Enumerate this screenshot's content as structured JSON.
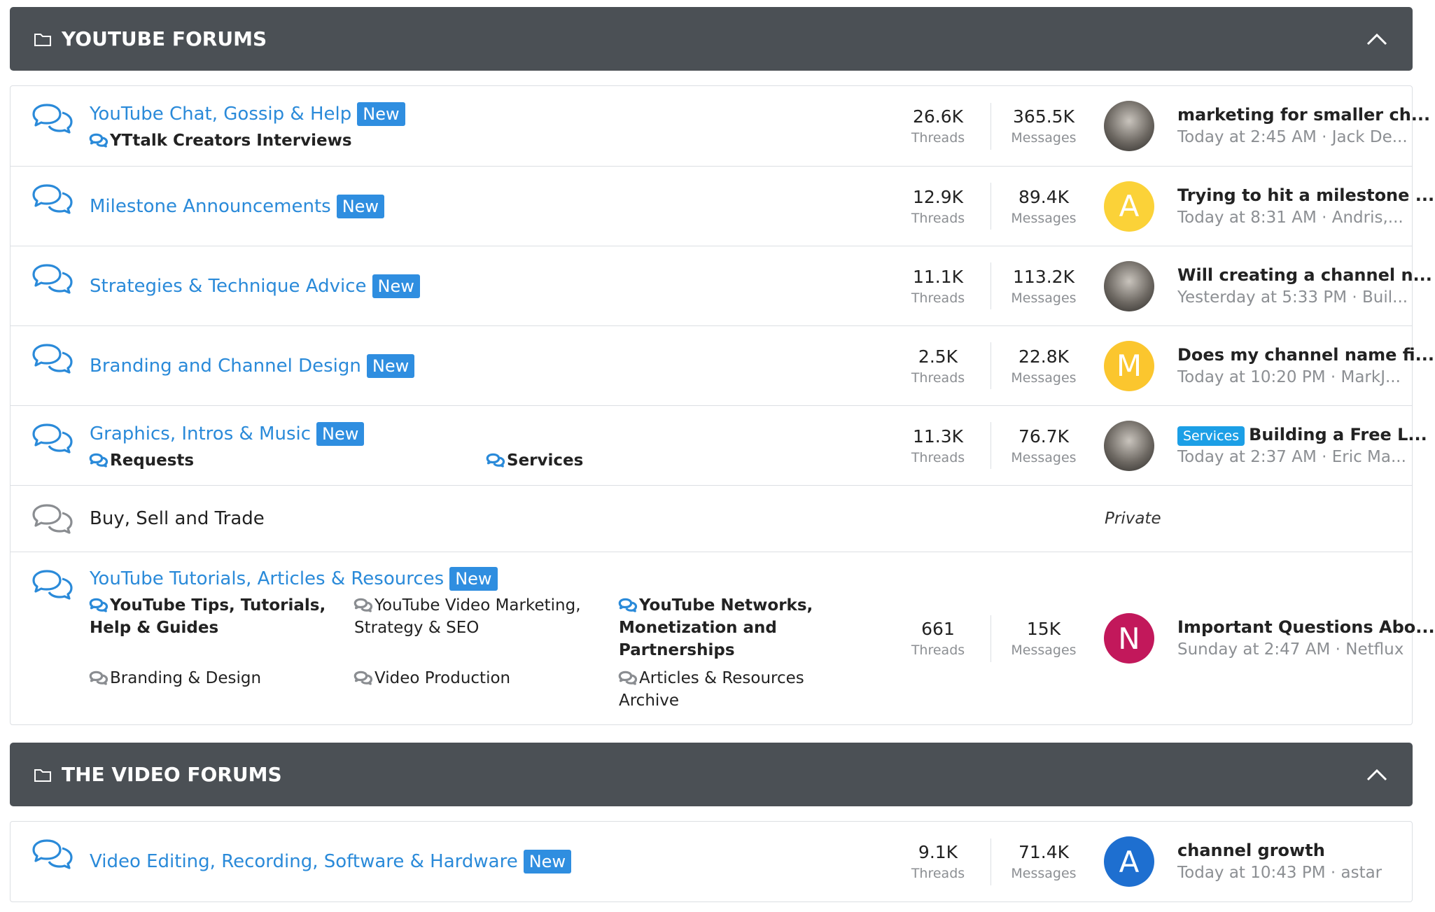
{
  "sections": [
    {
      "title": "YOUTUBE FORUMS",
      "forums": [
        {
          "title": "YouTube Chat, Gossip & Help",
          "badge": "New",
          "unread": true,
          "subforums": [
            {
              "name": "YTtalk Creators Interviews",
              "unread": true
            }
          ],
          "threads": "26.6K",
          "threads_label": "Threads",
          "messages": "365.5K",
          "messages_label": "Messages",
          "avatar": {
            "kind": "photo"
          },
          "latest": {
            "title": "marketing for smaller ch...",
            "meta": "Today at 2:45 AM · Jack De..."
          }
        },
        {
          "title": "Milestone Announcements",
          "badge": "New",
          "unread": true,
          "subforums": [],
          "threads": "12.9K",
          "threads_label": "Threads",
          "messages": "89.4K",
          "messages_label": "Messages",
          "avatar": {
            "kind": "letter",
            "letter": "A",
            "color": "#fbd238"
          },
          "latest": {
            "title": "Trying to hit a milestone ...",
            "meta": "Today at 8:31 AM · Andris,..."
          }
        },
        {
          "title": "Strategies & Technique Advice",
          "badge": "New",
          "unread": true,
          "subforums": [],
          "threads": "11.1K",
          "threads_label": "Threads",
          "messages": "113.2K",
          "messages_label": "Messages",
          "avatar": {
            "kind": "photo"
          },
          "latest": {
            "title": "Will creating a channel n...",
            "meta": "Yesterday at 5:33 PM · Buil..."
          }
        },
        {
          "title": "Branding and Channel Design",
          "badge": "New",
          "unread": true,
          "subforums": [],
          "threads": "2.5K",
          "threads_label": "Threads",
          "messages": "22.8K",
          "messages_label": "Messages",
          "avatar": {
            "kind": "letter",
            "letter": "M",
            "color": "#fbc62e"
          },
          "latest": {
            "title": "Does my channel name fi...",
            "meta": "Today at 10:20 PM · MarkJ..."
          }
        },
        {
          "title": "Graphics, Intros & Music",
          "badge": "New",
          "unread": true,
          "subforums": [
            {
              "name": "Requests",
              "unread": true
            },
            {
              "name": "Services",
              "unread": true
            }
          ],
          "threads": "11.3K",
          "threads_label": "Threads",
          "messages": "76.7K",
          "messages_label": "Messages",
          "avatar": {
            "kind": "photo"
          },
          "latest": {
            "prefix": "Services",
            "title": "Building a Free L...",
            "meta": "Today at 2:37 AM · Eric Ma..."
          }
        },
        {
          "title": "Buy, Sell and Trade",
          "unread": false,
          "subforums": [],
          "private": "Private"
        },
        {
          "title": "YouTube Tutorials, Articles & Resources",
          "badge": "New",
          "unread": true,
          "subforums": [
            {
              "name": "YouTube Tips, Tutorials, Help & Guides",
              "unread": true
            },
            {
              "name": "YouTube Video Marketing, Strategy & SEO",
              "unread": false
            },
            {
              "name": "YouTube Networks, Monetization and Partnerships",
              "unread": true
            },
            {
              "name": "Branding & Design",
              "unread": false
            },
            {
              "name": "Video Production",
              "unread": false
            },
            {
              "name": "Articles & Resources Archive",
              "unread": false
            }
          ],
          "threads": "661",
          "threads_label": "Threads",
          "messages": "15K",
          "messages_label": "Messages",
          "avatar": {
            "kind": "letter",
            "letter": "N",
            "color": "#c2185b"
          },
          "latest": {
            "title": "Important Questions Abo...",
            "meta": "Sunday at 2:47 AM · Netflux"
          }
        }
      ]
    },
    {
      "title": "THE VIDEO FORUMS",
      "forums": [
        {
          "title": "Video Editing, Recording, Software & Hardware",
          "badge": "New",
          "unread": true,
          "subforums": [],
          "threads": "9.1K",
          "threads_label": "Threads",
          "messages": "71.4K",
          "messages_label": "Messages",
          "avatar": {
            "kind": "letter",
            "letter": "A",
            "color": "#1e6fd0"
          },
          "latest": {
            "title": "channel growth",
            "meta": "Today at 10:43 PM · astar"
          }
        }
      ]
    }
  ]
}
